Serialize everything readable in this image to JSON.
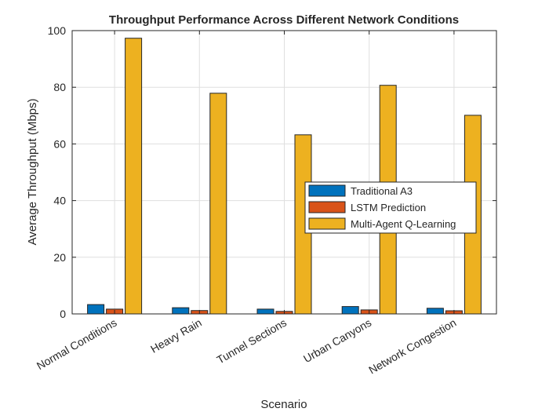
{
  "chart_data": {
    "type": "bar",
    "title": "Throughput Performance Across Different Network Conditions",
    "xlabel": "Scenario",
    "ylabel": "Average Throughput (Mbps)",
    "ylim": [
      0,
      100
    ],
    "yticks": [
      0,
      20,
      40,
      60,
      80,
      100
    ],
    "grid": true,
    "legend_position": "center-right",
    "categories": [
      "Normal Conditions",
      "Heavy Rain",
      "Tunnel Sections",
      "Urban Canyons",
      "Network Congestion"
    ],
    "series": [
      {
        "name": "Traditional A3",
        "color": "#0072BD",
        "values": [
          3.3,
          2.2,
          1.7,
          2.6,
          2.0
        ]
      },
      {
        "name": "LSTM Prediction",
        "color": "#D95319",
        "values": [
          1.7,
          1.2,
          0.9,
          1.4,
          1.1
        ]
      },
      {
        "name": "Multi-Agent Q-Learning",
        "color": "#EDB120",
        "values": [
          97.3,
          77.9,
          63.2,
          80.7,
          70.1
        ]
      }
    ]
  }
}
